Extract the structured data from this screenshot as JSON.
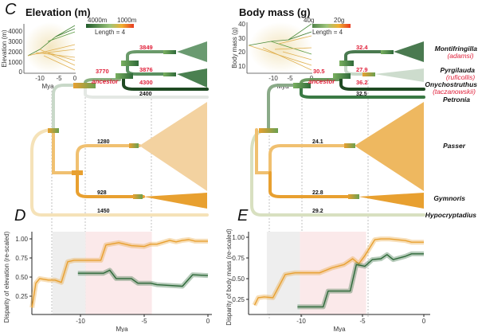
{
  "panel_c": {
    "letter": "C",
    "title": "Elevation (m)",
    "legend": {
      "high_label": "4000m",
      "low_label": "1000m",
      "length_label": "Length = 4"
    },
    "inset": {
      "ylabel": "Elevation (m)",
      "xlabel": "Mya",
      "yticks": [
        "4000",
        "3000",
        "2000",
        "1000",
        "0"
      ],
      "xticks": [
        "-10",
        "-5",
        "0"
      ]
    },
    "node_values": {
      "montifringilla": "3849",
      "ancestor_value": "3770",
      "ancestor": "ancestor",
      "pyrgilauda": "3876",
      "onychostruthus": "4300",
      "petronia": "2400",
      "passer": "1280",
      "gymnoris": "928",
      "hypocryptadius": "1450"
    }
  },
  "panel_e_tree": {
    "title": "Body mass (g)",
    "legend": {
      "high_label": "40g",
      "low_label": "20g",
      "length_label": "Length = 4"
    },
    "inset": {
      "ylabel": "Body mass (g)",
      "xlabel": "Mya",
      "yticks": [
        "40",
        "30",
        "20",
        "10"
      ],
      "xticks": [
        "-10",
        "-5",
        "0"
      ]
    },
    "node_values": {
      "montifringilla": "32.4",
      "ancestor_value": "30.5",
      "ancestor": "ancestor",
      "pyrgilauda": "27.9",
      "onychostruthus": "36.2",
      "petronia": "32.5",
      "passer": "24.1",
      "gymnoris": "22.8",
      "hypocryptadius": "29.2"
    },
    "taxa": {
      "montifringilla": "Montifringilla",
      "montifringilla_sub": "(adamsi)",
      "pyrgilauda": "Pyrgilauda",
      "pyrgilauda_sub": "(ruficollis)",
      "onychostruthus": "Onychostruthus",
      "onychostruthus_sub": "(taczanowskii)",
      "petronia": "Petronia",
      "passer": "Passer",
      "gymnoris": "Gymnoris",
      "hypocryptadius": "Hypocryptadius"
    }
  },
  "colors": {
    "high": "#1f5a2a",
    "low": "#e8a030",
    "red_label": "#e0203a",
    "grey_shade": "#eeeeee",
    "pink_shade": "#fbe9ea"
  },
  "chart_data": [
    {
      "panel": "D",
      "type": "line",
      "ylabel": "Disparity of elevation (re-scaled)",
      "xlabel": "Mya",
      "xlim": [
        -14,
        0
      ],
      "ylim": [
        0.05,
        1.1
      ],
      "xticks": [
        "-10",
        "-5",
        "0"
      ],
      "yticks": [
        "0.25",
        "0.50",
        "0.75",
        "1.00"
      ],
      "shaded_ranges": [
        {
          "from": -12.2,
          "to": -9.6,
          "color": "#eeeeee"
        },
        {
          "from": -9.6,
          "to": -4.4,
          "color": "#fbe9ea"
        }
      ],
      "series": [
        {
          "color": "#e8a030",
          "x": [
            -13.8,
            -13.5,
            -13.2,
            -12.5,
            -12,
            -11.5,
            -11,
            -10.5,
            -9,
            -8.4,
            -8,
            -7,
            -6,
            -5,
            -4.5,
            -4,
            -3,
            -2.5,
            -2,
            -1.5,
            -1,
            0
          ],
          "y": [
            0.1,
            0.42,
            0.48,
            0.46,
            0.46,
            0.43,
            0.7,
            0.72,
            0.72,
            0.72,
            0.92,
            0.95,
            0.91,
            0.9,
            0.93,
            0.93,
            0.98,
            0.96,
            0.98,
            0.99,
            0.97,
            0.97
          ]
        },
        {
          "color": "#2f6a3a",
          "x": [
            -10.2,
            -8.2,
            -7.7,
            -7.2,
            -6,
            -5.5,
            -4.5,
            -4,
            -2,
            -1.2,
            0
          ],
          "y": [
            0.55,
            0.55,
            0.59,
            0.48,
            0.48,
            0.42,
            0.42,
            0.4,
            0.38,
            0.53,
            0.52
          ]
        }
      ]
    },
    {
      "panel": "E",
      "type": "line",
      "ylabel": "Disparity of body mass (re-scaled)",
      "xlabel": "Mya",
      "xlim": [
        -14,
        0
      ],
      "ylim": [
        0.1,
        1.05
      ],
      "xticks": [
        "-10",
        "-5",
        "0"
      ],
      "yticks": [
        "0.25",
        "0.50",
        "0.75",
        "1.00"
      ],
      "shaded_ranges": [
        {
          "from": -12.8,
          "to": -10.1,
          "color": "#eeeeee"
        },
        {
          "from": -10.1,
          "to": -4.7,
          "color": "#fbe9ea"
        }
      ],
      "series": [
        {
          "color": "#e8a030",
          "x": [
            -13.8,
            -13.5,
            -13,
            -12.3,
            -11.3,
            -10.5,
            -8.5,
            -7.5,
            -6.5,
            -5.8,
            -5.3,
            -4.8,
            -4,
            -3.5,
            -2.8,
            -1.5,
            -1,
            0
          ],
          "y": [
            0.18,
            0.27,
            0.28,
            0.27,
            0.55,
            0.57,
            0.57,
            0.63,
            0.67,
            0.74,
            0.68,
            0.78,
            0.97,
            0.98,
            0.98,
            0.96,
            0.94,
            0.94
          ]
        },
        {
          "color": "#2f6a3a",
          "x": [
            -10.3,
            -8.2,
            -7.8,
            -6,
            -5.5,
            -4.8,
            -4.2,
            -3.5,
            -3,
            -2.5,
            -1.5,
            -1,
            0
          ],
          "y": [
            0.16,
            0.16,
            0.35,
            0.35,
            0.67,
            0.65,
            0.73,
            0.74,
            0.79,
            0.73,
            0.77,
            0.8,
            0.8
          ]
        }
      ]
    }
  ]
}
